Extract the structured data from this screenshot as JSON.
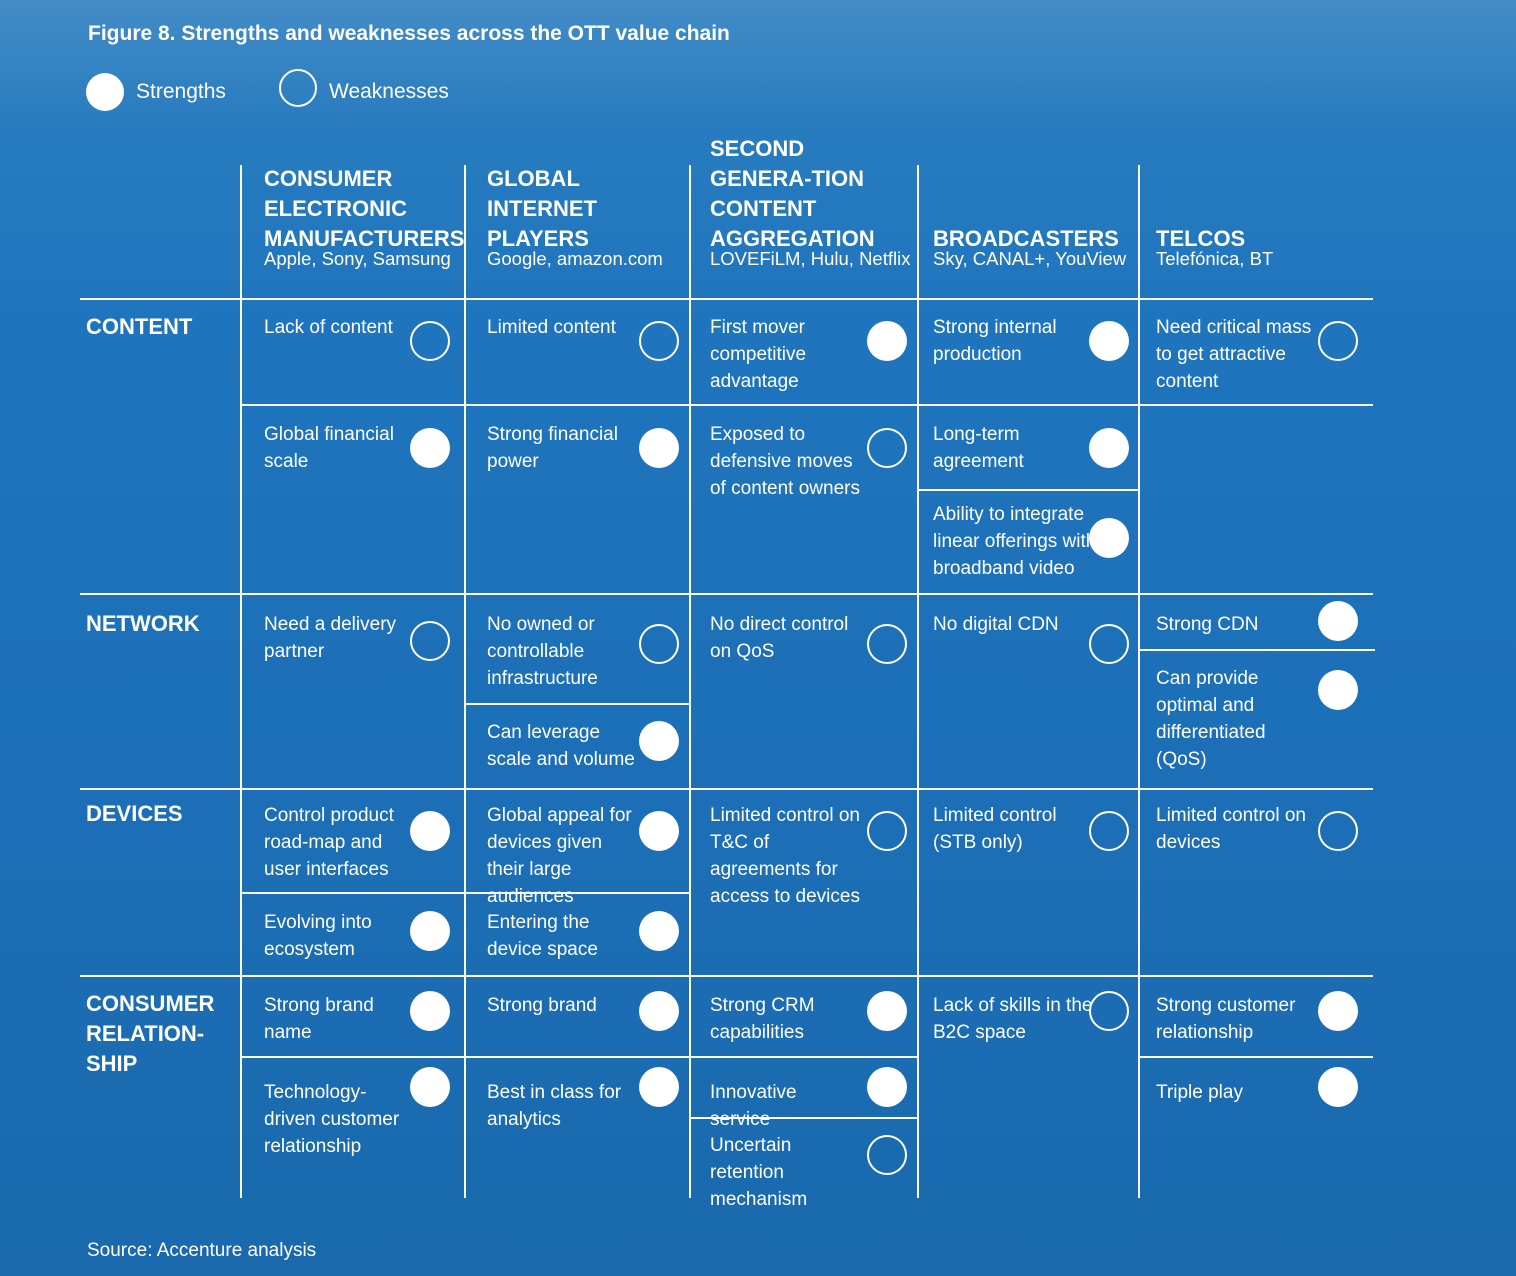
{
  "title": "Figure 8. Strengths and weaknesses across the OTT value chain",
  "legend": {
    "strengths": "Strengths",
    "weaknesses": "Weaknesses"
  },
  "columns": [
    {
      "name": "CONSUMER ELECTRONIC MANUFACTURERS",
      "examples": "Apple, Sony, Samsung"
    },
    {
      "name": "GLOBAL INTERNET PLAYERS",
      "examples": "Google, amazon.com"
    },
    {
      "name": "SECOND GENERA-TION CONTENT AGGREGATION",
      "examples": "LOVEFiLM, Hulu, Netflix"
    },
    {
      "name": "BROADCASTERS",
      "examples": "Sky, CANAL+, YouView"
    },
    {
      "name": "TELCOS",
      "examples": "Telefónica, BT"
    }
  ],
  "rows": [
    {
      "name": "CONTENT"
    },
    {
      "name": "NETWORK"
    },
    {
      "name": "DEVICES"
    },
    {
      "name": "CONSUMER RELATION-SHIP"
    }
  ],
  "cells": [
    {
      "row": 0,
      "col": 0,
      "text": "Lack of content",
      "type": "weakness"
    },
    {
      "row": 0,
      "col": 0,
      "text": "Global financial scale",
      "type": "strength"
    },
    {
      "row": 0,
      "col": 1,
      "text": "Limited content",
      "type": "weakness"
    },
    {
      "row": 0,
      "col": 1,
      "text": "Strong financial power",
      "type": "strength"
    },
    {
      "row": 0,
      "col": 2,
      "text": "First mover competitive advantage",
      "type": "strength"
    },
    {
      "row": 0,
      "col": 2,
      "text": "Exposed to defensive moves of content owners",
      "type": "weakness"
    },
    {
      "row": 0,
      "col": 3,
      "text": "Strong internal production",
      "type": "strength"
    },
    {
      "row": 0,
      "col": 3,
      "text": "Long-term agreement",
      "type": "strength"
    },
    {
      "row": 0,
      "col": 3,
      "text": "Ability to integrate linear offerings with broadband video",
      "type": "strength"
    },
    {
      "row": 0,
      "col": 4,
      "text": "Need critical mass to get attractive content",
      "type": "weakness"
    },
    {
      "row": 1,
      "col": 0,
      "text": "Need a delivery partner",
      "type": "weakness"
    },
    {
      "row": 1,
      "col": 1,
      "text": "No owned or controllable infrastructure",
      "type": "weakness"
    },
    {
      "row": 1,
      "col": 1,
      "text": "Can leverage scale and volume",
      "type": "strength"
    },
    {
      "row": 1,
      "col": 2,
      "text": "No direct control on QoS",
      "type": "weakness"
    },
    {
      "row": 1,
      "col": 3,
      "text": "No digital CDN",
      "type": "weakness"
    },
    {
      "row": 1,
      "col": 4,
      "text": "Strong CDN",
      "type": "strength"
    },
    {
      "row": 1,
      "col": 4,
      "text": "Can provide optimal and differentiated (QoS)",
      "type": "strength"
    },
    {
      "row": 2,
      "col": 0,
      "text": "Control product road-map and user interfaces",
      "type": "strength"
    },
    {
      "row": 2,
      "col": 0,
      "text": "Evolving into ecosystem",
      "type": "strength"
    },
    {
      "row": 2,
      "col": 1,
      "text": "Global appeal for devices given their large audiences",
      "type": "strength"
    },
    {
      "row": 2,
      "col": 1,
      "text": "Entering the device space",
      "type": "strength"
    },
    {
      "row": 2,
      "col": 2,
      "text": "Limited control on T&C of agreements for access to devices",
      "type": "weakness"
    },
    {
      "row": 2,
      "col": 3,
      "text": "Limited control (STB only)",
      "type": "weakness"
    },
    {
      "row": 2,
      "col": 4,
      "text": "Limited control on devices",
      "type": "weakness"
    },
    {
      "row": 3,
      "col": 0,
      "text": "Strong brand name",
      "type": "strength"
    },
    {
      "row": 3,
      "col": 0,
      "text": "Technology-driven customer relationship",
      "type": "strength"
    },
    {
      "row": 3,
      "col": 1,
      "text": "Strong brand",
      "type": "strength"
    },
    {
      "row": 3,
      "col": 1,
      "text": "Best in class for analytics",
      "type": "strength"
    },
    {
      "row": 3,
      "col": 2,
      "text": "Strong CRM capabilities",
      "type": "strength"
    },
    {
      "row": 3,
      "col": 2,
      "text": "Innovative service",
      "type": "strength"
    },
    {
      "row": 3,
      "col": 2,
      "text": "Uncertain retention mechanism",
      "type": "weakness"
    },
    {
      "row": 3,
      "col": 3,
      "text": "Lack of skills in the B2C space",
      "type": "weakness"
    },
    {
      "row": 3,
      "col": 4,
      "text": "Strong customer relationship",
      "type": "strength"
    },
    {
      "row": 3,
      "col": 4,
      "text": "Triple play",
      "type": "strength"
    }
  ],
  "source": "Source: Accenture analysis"
}
